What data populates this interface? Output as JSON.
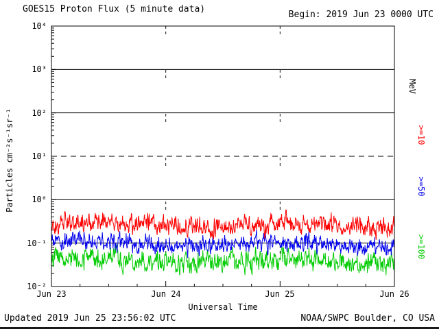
{
  "header": {
    "title": "GOES15 Proton Flux (5 minute data)",
    "begin": "Begin: 2019 Jun 23 0000 UTC"
  },
  "axes": {
    "y_label": "Particles cm⁻²s⁻¹sr⁻¹",
    "x_label": "Universal Time",
    "y_ticks": [
      "10⁴",
      "10³",
      "10²",
      "10¹",
      "10⁰",
      "10⁻¹",
      "10⁻²"
    ],
    "x_ticks": [
      "Jun 23",
      "Jun 24",
      "Jun 25",
      "Jun 26"
    ]
  },
  "right_labels": {
    "unit": "MeV",
    "series": [
      ">=10",
      ">=50",
      ">=100"
    ]
  },
  "footer": {
    "updated": "Updated 2019 Jun 25 23:56:02 UTC",
    "source": "NOAA/SWPC Boulder, CO USA"
  },
  "chart_data": {
    "type": "line",
    "title": "GOES15 Proton Flux (5 minute data)",
    "xlabel": "Universal Time",
    "ylabel": "Particles cm⁻²s⁻¹sr⁻¹",
    "y_scale": "log",
    "ylim": [
      0.01,
      10000
    ],
    "y_tick_exponents": [
      4,
      3,
      2,
      1,
      0,
      -1,
      -2
    ],
    "x_range": [
      "2019 Jun 23 0000 UTC",
      "2019 Jun 26 0000 UTC"
    ],
    "x_tick_labels": [
      "Jun 23",
      "Jun 24",
      "Jun 25",
      "Jun 26"
    ],
    "solid_gridline_values": [
      1000,
      100,
      1,
      0.1
    ],
    "dashed_gridline_values": [
      10
    ],
    "day_boundary_lines": [
      "Jun 24",
      "Jun 25"
    ],
    "cadence_minutes": 5,
    "points_per_series": 864,
    "series": [
      {
        "name": ">=10 MeV",
        "color": "#ff0000",
        "approx_mean_flux": 0.25,
        "approx_range": [
          0.13,
          0.52
        ],
        "log10_mean": -0.6,
        "log10_noise_scale": 0.28,
        "seed": 101
      },
      {
        "name": ">=50 MeV",
        "color": "#0000ee",
        "approx_mean_flux": 0.095,
        "approx_range": [
          0.05,
          0.18
        ],
        "log10_mean": -1.02,
        "log10_noise_scale": 0.26,
        "seed": 202
      },
      {
        "name": ">=100 MeV",
        "color": "#00cc00",
        "approx_mean_flux": 0.04,
        "approx_range": [
          0.018,
          0.09
        ],
        "log10_mean": -1.38,
        "log10_noise_scale": 0.3,
        "seed": 303
      }
    ]
  }
}
